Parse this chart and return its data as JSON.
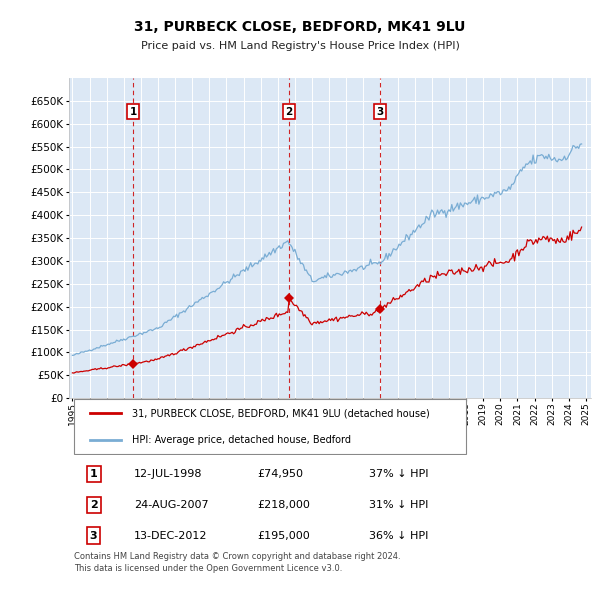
{
  "title": "31, PURBECK CLOSE, BEDFORD, MK41 9LU",
  "subtitle": "Price paid vs. HM Land Registry's House Price Index (HPI)",
  "hpi_color": "#7aadd4",
  "price_color": "#cc0000",
  "plot_bg": "#dce8f5",
  "ylim": [
    0,
    700000
  ],
  "yticks": [
    0,
    50000,
    100000,
    150000,
    200000,
    250000,
    300000,
    350000,
    400000,
    450000,
    500000,
    550000,
    600000,
    650000
  ],
  "transactions": [
    {
      "date": 1998.54,
      "price": 74950,
      "label": "1"
    },
    {
      "date": 2007.65,
      "price": 218000,
      "label": "2"
    },
    {
      "date": 2012.96,
      "price": 195000,
      "label": "3"
    }
  ],
  "legend_price_label": "31, PURBECK CLOSE, BEDFORD, MK41 9LU (detached house)",
  "legend_hpi_label": "HPI: Average price, detached house, Bedford",
  "table_rows": [
    {
      "num": "1",
      "date": "12-JUL-1998",
      "price": "£74,950",
      "pct": "37% ↓ HPI"
    },
    {
      "num": "2",
      "date": "24-AUG-2007",
      "price": "£218,000",
      "pct": "31% ↓ HPI"
    },
    {
      "num": "3",
      "date": "13-DEC-2012",
      "price": "£195,000",
      "pct": "36% ↓ HPI"
    }
  ],
  "footer": "Contains HM Land Registry data © Crown copyright and database right 2024.\nThis data is licensed under the Open Government Licence v3.0.",
  "xlim": [
    1994.8,
    2025.3
  ],
  "xticks": [
    1995,
    1996,
    1997,
    1998,
    1999,
    2000,
    2001,
    2002,
    2003,
    2004,
    2005,
    2006,
    2007,
    2008,
    2009,
    2010,
    2011,
    2012,
    2013,
    2014,
    2015,
    2016,
    2017,
    2018,
    2019,
    2020,
    2021,
    2022,
    2023,
    2024,
    2025
  ]
}
